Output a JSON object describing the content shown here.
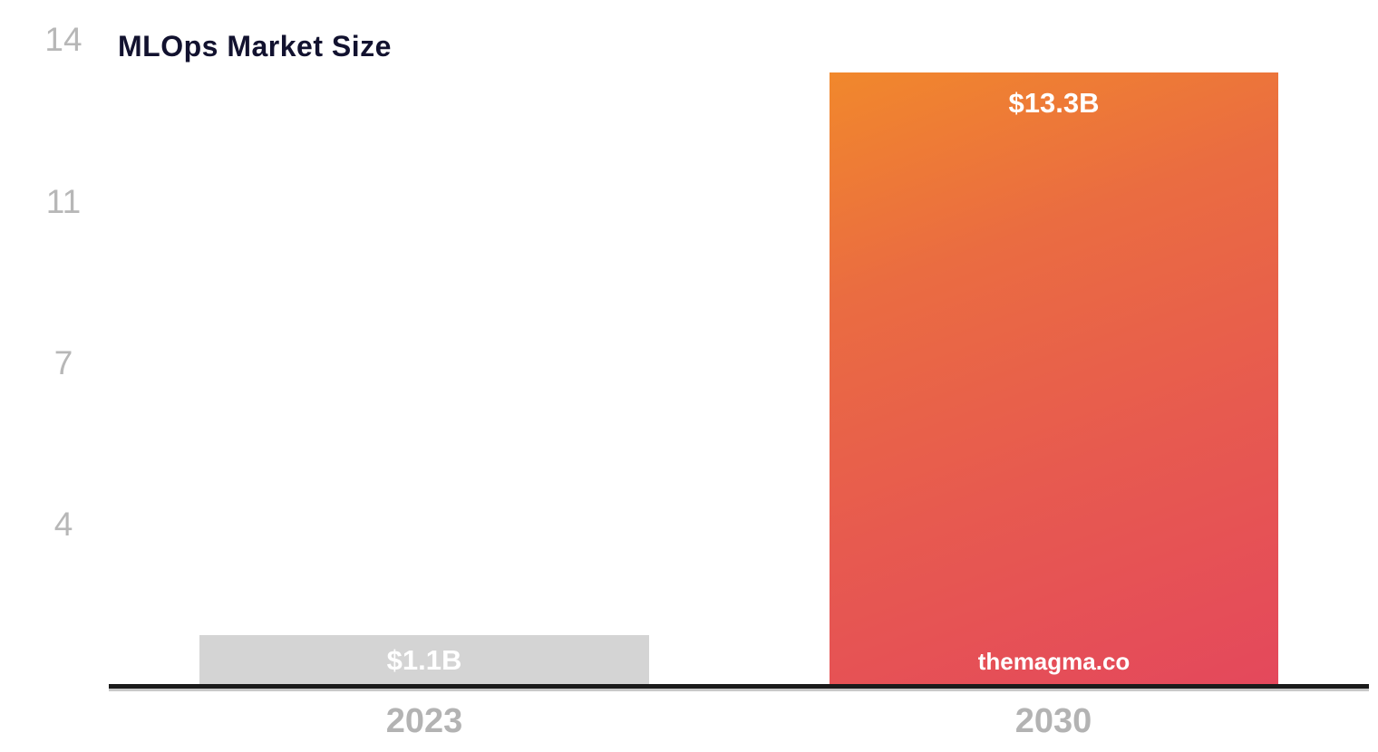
{
  "chart_data": {
    "type": "bar",
    "title": "MLOps Market Size",
    "categories": [
      "2023",
      "2030"
    ],
    "values": [
      1.1,
      13.3
    ],
    "data_labels": [
      "$1.1B",
      "$13.3B"
    ],
    "watermark": "themagma.co",
    "xlabel": "",
    "ylabel": "",
    "ylim": [
      0,
      14.3
    ],
    "y_ticks": [
      {
        "label": "14",
        "value": 14
      },
      {
        "label": "11",
        "value": 10.5
      },
      {
        "label": "7",
        "value": 7
      },
      {
        "label": "4",
        "value": 3.5
      }
    ],
    "grid": false,
    "legend": false,
    "colors": {
      "bar_2023": "#d4d4d4",
      "bar_2030_gradient": [
        "#f1882c",
        "#ea6c41",
        "#e75a4f",
        "#e4485c"
      ],
      "title_text": "#12122f",
      "y_tick_text": "#b7b7b7",
      "x_label_text": "#b3b3b3",
      "data_label_text": "#ffffff",
      "axis_line": "#1b1b1b"
    }
  }
}
